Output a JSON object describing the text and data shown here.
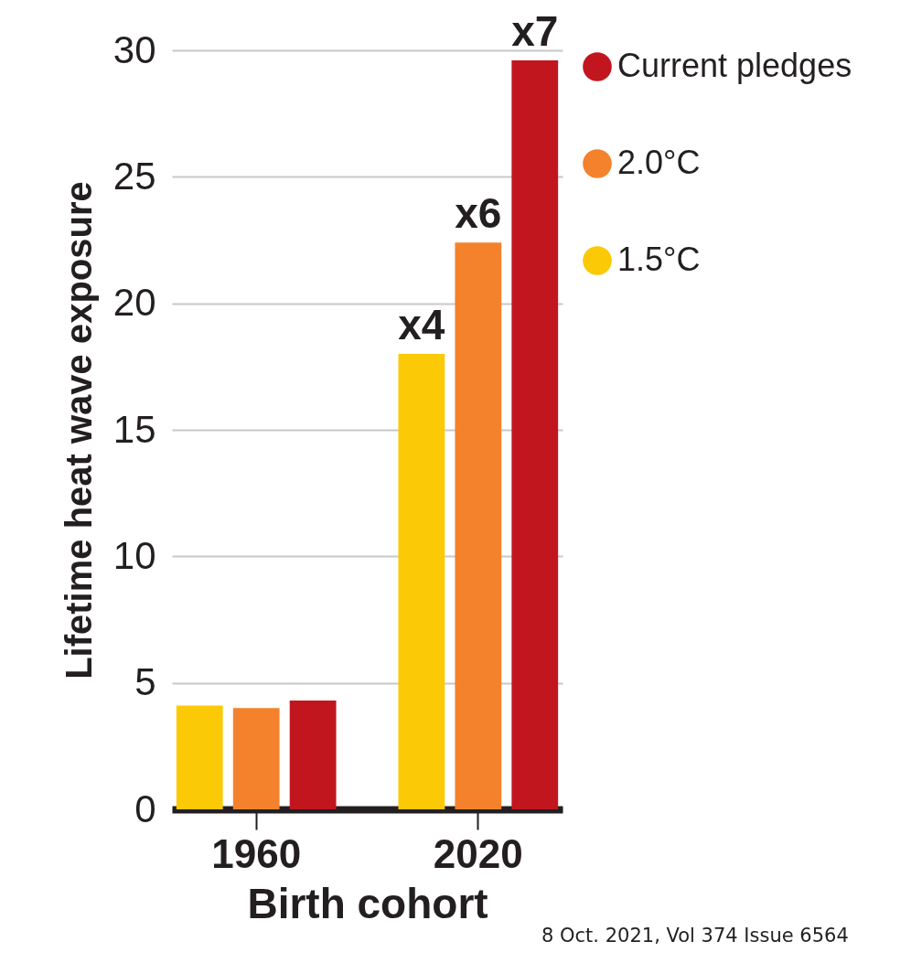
{
  "chart_data": {
    "type": "bar",
    "xlabel": "Birth cohort",
    "ylabel": "Lifetime heat wave exposure",
    "categories": [
      "1960",
      "2020"
    ],
    "series": [
      {
        "name": "1.5°C",
        "color": "#fcc907",
        "values": [
          4.1,
          18.0
        ],
        "value_labels": [
          null,
          "x4"
        ]
      },
      {
        "name": "2.0°C",
        "color": "#f4822c",
        "values": [
          4.0,
          22.4
        ],
        "value_labels": [
          null,
          "x6"
        ]
      },
      {
        "name": "Current pledges",
        "color": "#c2161e",
        "values": [
          4.3,
          29.6
        ],
        "value_labels": [
          null,
          "x7"
        ]
      }
    ],
    "ylim": [
      0,
      30
    ],
    "yticks": [
      0,
      5,
      10,
      15,
      20,
      25,
      30
    ],
    "grid": "y",
    "legend": "right",
    "annotations": [
      "8 Oct. 2021, Vol 374 Issue 6564"
    ]
  }
}
